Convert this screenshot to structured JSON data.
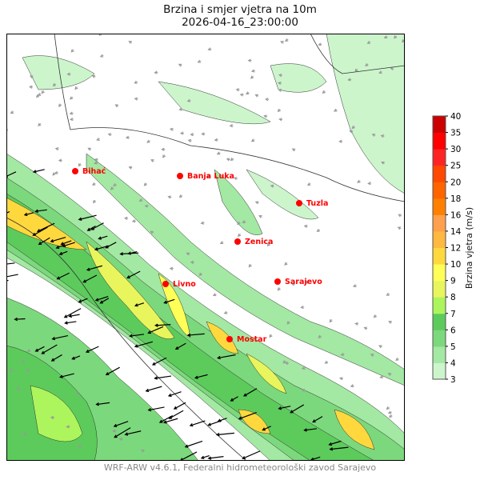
{
  "title": "Brzina i smjer vjetra na 10m",
  "subtitle": "2026-04-16_23:00:00",
  "footer": "WRF-ARW v4.6.1, Federalni hidrometeorološki zavod Sarajevo",
  "colorbar": {
    "label": "Brzina vjetra (m/s)",
    "levels": [
      "3",
      "4",
      "5",
      "6",
      "7",
      "8",
      "9",
      "10",
      "12",
      "14",
      "16",
      "18",
      "20",
      "25",
      "30",
      "35",
      "40"
    ],
    "colors": [
      "#ccf5cc",
      "#a3e8a3",
      "#7cd87c",
      "#5ccb5c",
      "#acf55c",
      "#e8f55c",
      "#ffff58",
      "#ffd83e",
      "#ffb840",
      "#ffa04c",
      "#ff8000",
      "#ff6400",
      "#ff4800",
      "#ff2424",
      "#ff0000",
      "#cc0000"
    ]
  },
  "cities": [
    {
      "name": "Bihać"
    },
    {
      "name": "Banja Luka"
    },
    {
      "name": "Tuzla"
    },
    {
      "name": "Zenica"
    },
    {
      "name": "Livno"
    },
    {
      "name": "Sarajevo"
    },
    {
      "name": "Mostar"
    }
  ],
  "city_color": "#ff0000"
}
